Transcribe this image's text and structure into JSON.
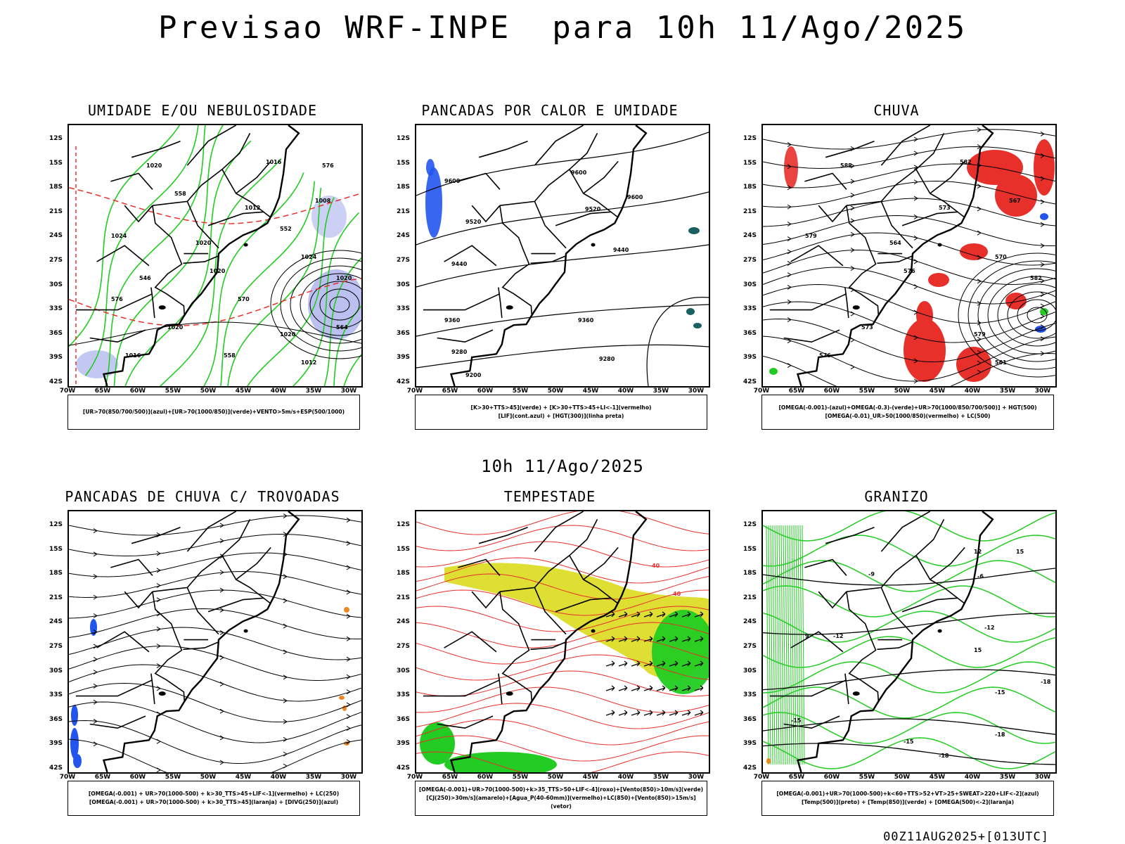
{
  "title": "Previsao WRF-INPE  para 10h 11/Ago/2025",
  "mid_title": "10h 11/Ago/2025",
  "footer": "00Z11AUG2025+[013UTC]",
  "axis": {
    "lat_labels": [
      "12S",
      "15S",
      "18S",
      "21S",
      "24S",
      "27S",
      "30S",
      "33S",
      "36S",
      "39S",
      "42S"
    ],
    "lon_labels": [
      "70W",
      "65W",
      "60W",
      "55W",
      "50W",
      "45W",
      "40W",
      "35W",
      "30W"
    ]
  },
  "colors": {
    "red": "#e8302b",
    "green": "#22cc22",
    "blue": "#2255ee",
    "lavender": "#aab0ee",
    "yellow": "#dede33",
    "orange": "#ee8822",
    "teal": "#1a6060"
  },
  "panels": [
    {
      "id": "umidade",
      "title": "UMIDADE E/OU NEBULOSIDADE",
      "legend": [
        "[UR>70(850/700/500)](azul)+[UR>70(1000/850)](verde)+VENTO>5m/s+ESP(500/1000)"
      ],
      "labels": [
        "1020",
        "1016",
        "1024",
        "1020",
        "1020",
        "1024",
        "1020",
        "1020",
        "1016",
        "1012",
        "1008",
        "1020",
        "1012",
        "570",
        "576",
        "564",
        "558",
        "552",
        "546",
        "558",
        "576"
      ]
    },
    {
      "id": "pancadas",
      "title": "PANCADAS POR CALOR E UMIDADE",
      "legend": [
        "[K>30+TTS>45](verde) + [K>30+TTS>45+LI<-1](vermelho)",
        "[LIF](cont.azul) + [HGT(300)](linha preta)"
      ],
      "labels": [
        "9600",
        "9600",
        "9600",
        "9520",
        "9520",
        "9440",
        "9440",
        "9360",
        "9360",
        "9280",
        "9280",
        "9200"
      ]
    },
    {
      "id": "chuva",
      "title": "CHUVA",
      "legend": [
        "[OMEGA(-0.001)-(azul)+OMEGA(-0.3)-(verde)+UR>70(1000/850/700/500)] + HGT(500)",
        "[OMEGA(-0.01)_UR>50(1000/850)(vermelho) + LC(500)"
      ],
      "labels": [
        "588",
        "582",
        "579",
        "576",
        "573",
        "570",
        "582",
        "579",
        "576",
        "573",
        "567",
        "564",
        "561"
      ]
    },
    {
      "id": "trovoadas",
      "title": "PANCADAS DE CHUVA C/ TROVOADAS",
      "legend": [
        "[OMEGA(-0.001) + UR>70(1000-500) + k>30_TTS>45+LIF<-1](vermelho) + LC(250)",
        "[OMEGA(-0.001) + UR>70(1000-500) + k>30_TTS>45](laranja) + [DIVG(250)](azul)"
      ],
      "labels": []
    },
    {
      "id": "tempestade",
      "title": "TEMPESTADE",
      "legend": [
        "[OMEGA(-0.001)+UR>70(1000-500)+k>35_TTS>50+LIF<-4](roxo)+[Vento(850)>10m/s](verde)",
        "[CJ(250)>30m/s](amarelo)+[Agua_P(40-60mm)](vermelho)+LC(850)+[Vento(850)>15m/s](vetor)"
      ],
      "labels": [
        "40",
        "40"
      ]
    },
    {
      "id": "granizo",
      "title": "GRANIZO",
      "legend": [
        "[OMEGA(-0.001)+UR>70(1000-500)+k<60+TTS>52+VT>25+SWEAT>220+LIF<-2](azul)",
        "[Temp(500)](preto) + [Temp(850)](verde) + [OMEGA(500)<-2](laranja)"
      ],
      "labels": [
        "-6",
        "-9",
        "-12",
        "-15",
        "-18",
        "-15",
        "-18",
        "-12",
        "9",
        "12",
        "15",
        "15",
        "-18",
        "-15"
      ]
    }
  ]
}
